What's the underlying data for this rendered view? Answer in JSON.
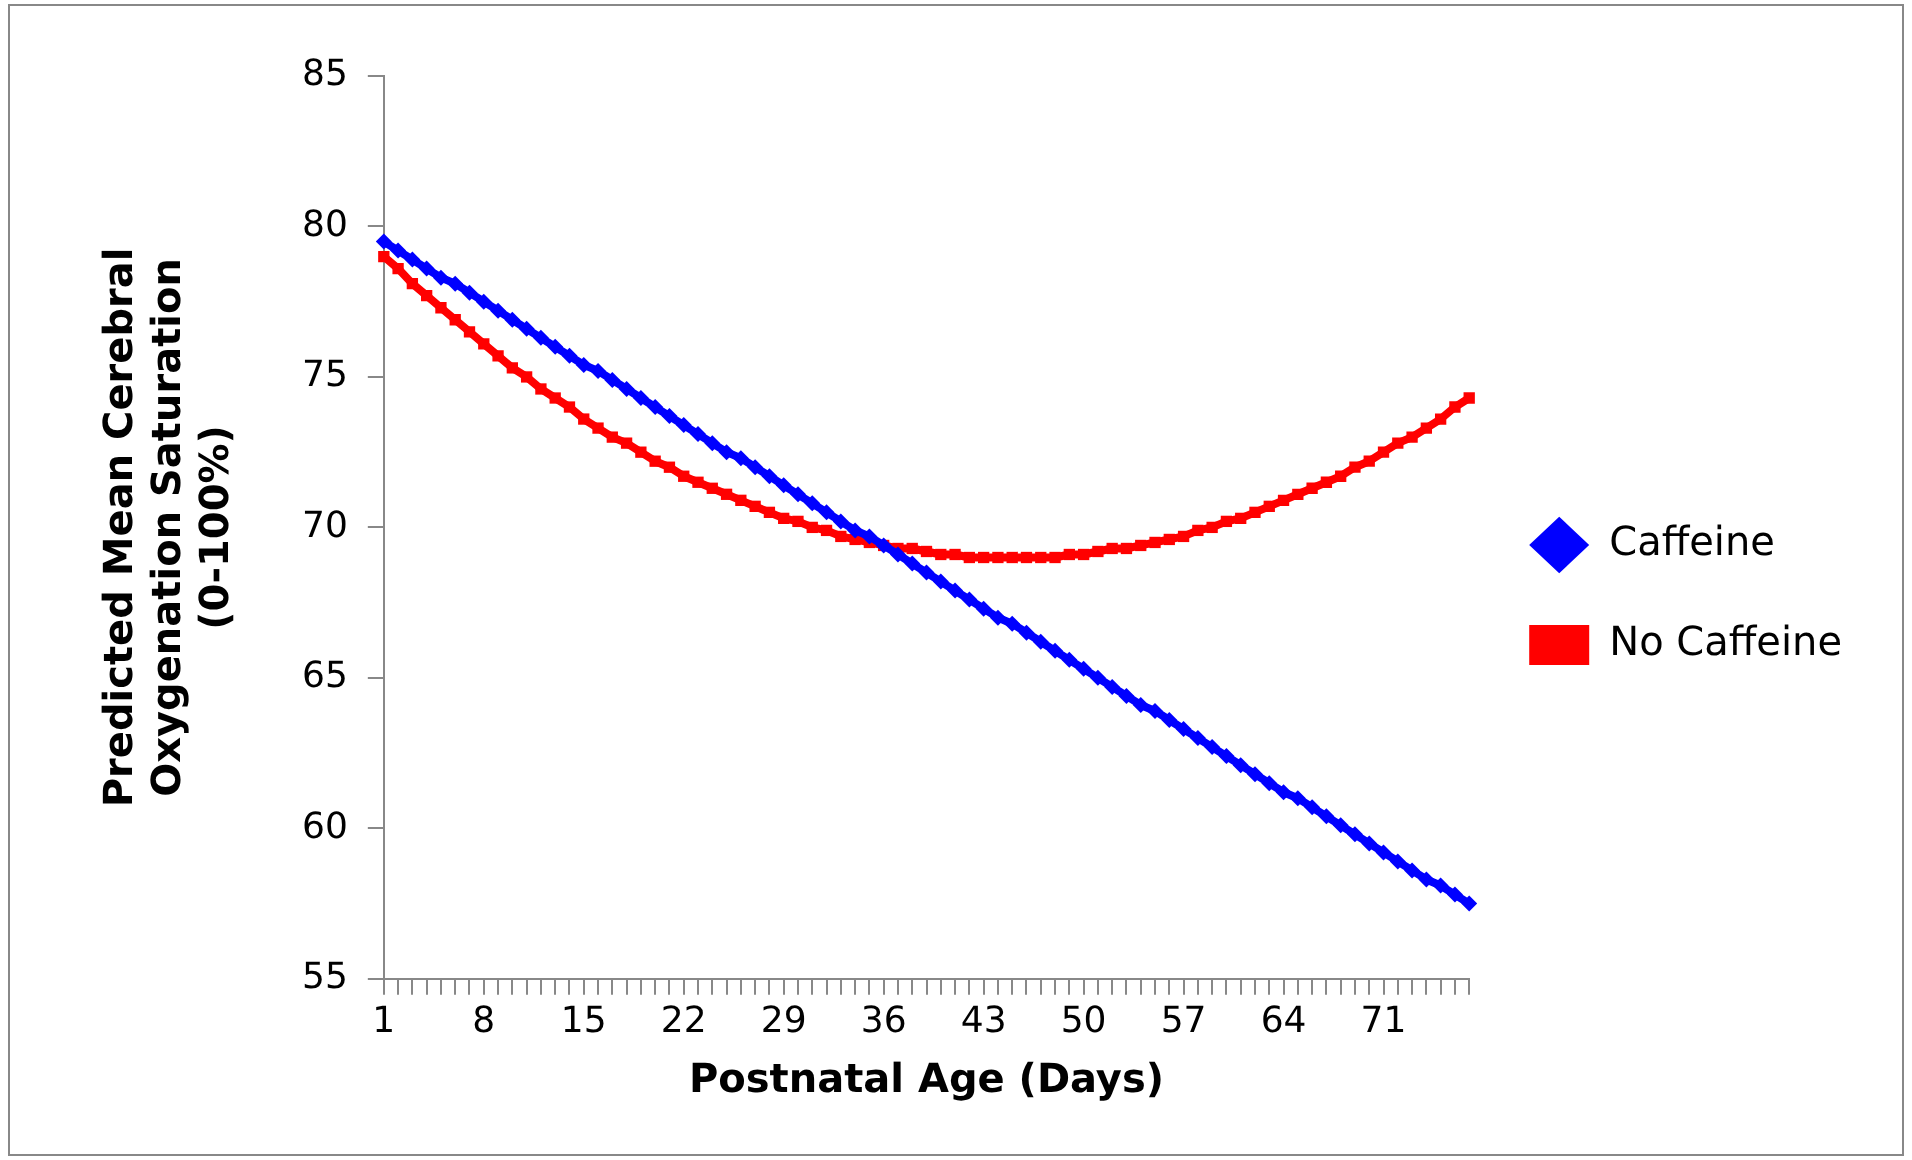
{
  "chart_data": {
    "type": "line",
    "xlabel": "Postnatal Age (Days)",
    "ylabel": "Predicted Mean Cerebral\nOxygenation Saturation\n(0-100%)",
    "categories": [
      "1",
      null,
      null,
      null,
      null,
      null,
      null,
      "8",
      null,
      null,
      null,
      null,
      null,
      null,
      "15",
      null,
      null,
      null,
      null,
      null,
      null,
      "22",
      null,
      null,
      null,
      null,
      null,
      null,
      "29",
      null,
      null,
      null,
      null,
      null,
      null,
      "36",
      null,
      null,
      null,
      null,
      null,
      null,
      "43",
      null,
      null,
      null,
      null,
      null,
      null,
      "50",
      null,
      null,
      null,
      null,
      null,
      null,
      "57",
      null,
      null,
      null,
      null,
      null,
      null,
      "64",
      null,
      null,
      null,
      null,
      null,
      null,
      "71",
      null,
      null,
      null,
      null,
      null,
      null
    ],
    "series": [
      {
        "name": "Caffeine",
        "color": "#0000ff",
        "marker": "diamond",
        "values": [
          79.5,
          79.2,
          78.9,
          78.6,
          78.3,
          78.1,
          77.8,
          77.5,
          77.2,
          76.9,
          76.6,
          76.3,
          76.0,
          75.7,
          75.4,
          75.2,
          74.9,
          74.6,
          74.3,
          74.0,
          73.7,
          73.4,
          73.1,
          72.8,
          72.5,
          72.3,
          72.0,
          71.7,
          71.4,
          71.1,
          70.8,
          70.5,
          70.2,
          69.9,
          69.7,
          69.4,
          69.1,
          68.8,
          68.5,
          68.2,
          67.9,
          67.6,
          67.3,
          67.0,
          66.8,
          66.5,
          66.2,
          65.9,
          65.6,
          65.3,
          65.0,
          64.7,
          64.4,
          64.1,
          63.9,
          63.6,
          63.3,
          63.0,
          62.7,
          62.4,
          62.1,
          61.8,
          61.5,
          61.2,
          61.0,
          60.7,
          60.4,
          60.1,
          59.8,
          59.5,
          59.2,
          58.9,
          58.6,
          58.3,
          58.1,
          57.8,
          57.5
        ]
      },
      {
        "name": "No Caffeine",
        "color": "#ff0000",
        "marker": "square",
        "values": [
          79.0,
          78.6,
          78.1,
          77.7,
          77.3,
          76.9,
          76.5,
          76.1,
          75.7,
          75.3,
          75.0,
          74.6,
          74.3,
          74.0,
          73.6,
          73.3,
          73.0,
          72.8,
          72.5,
          72.2,
          72.0,
          71.7,
          71.5,
          71.3,
          71.1,
          70.9,
          70.7,
          70.5,
          70.3,
          70.2,
          70.0,
          69.9,
          69.7,
          69.6,
          69.5,
          69.4,
          69.3,
          69.3,
          69.2,
          69.1,
          69.1,
          69.0,
          69.0,
          69.0,
          69.0,
          69.0,
          69.0,
          69.0,
          69.1,
          69.1,
          69.2,
          69.3,
          69.3,
          69.4,
          69.5,
          69.6,
          69.7,
          69.9,
          70.0,
          70.2,
          70.3,
          70.5,
          70.7,
          70.9,
          71.1,
          71.3,
          71.5,
          71.7,
          72.0,
          72.2,
          72.5,
          72.8,
          73.0,
          73.3,
          73.6,
          74.0,
          74.3
        ]
      }
    ],
    "ylim": [
      55,
      85
    ],
    "yticks": [
      55,
      60,
      65,
      70,
      75,
      80,
      85
    ],
    "grid": false,
    "legend": "right",
    "line_style": "solid"
  }
}
